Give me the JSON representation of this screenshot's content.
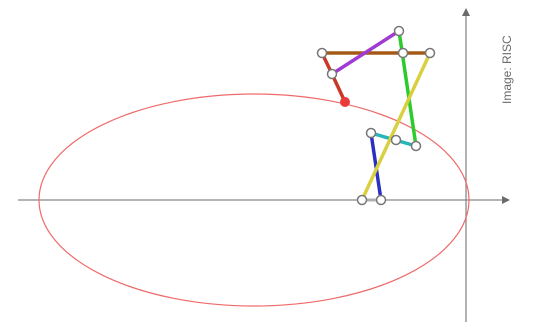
{
  "credit": {
    "text": "Image: RISC"
  },
  "colors": {
    "axis": "#888888",
    "ellipse": "#ee6a6a",
    "tracer": "#e83a3a",
    "joint_fill": "#ffffff",
    "joint_stroke": "#777777",
    "links": {
      "red": "#c93a26",
      "purple": "#a13ad3",
      "brown": "#a45a16",
      "green": "#2ccb2c",
      "yellow": "#d8d040",
      "cyan": "#28b5b5",
      "blue": "#2a30c0"
    }
  }
}
